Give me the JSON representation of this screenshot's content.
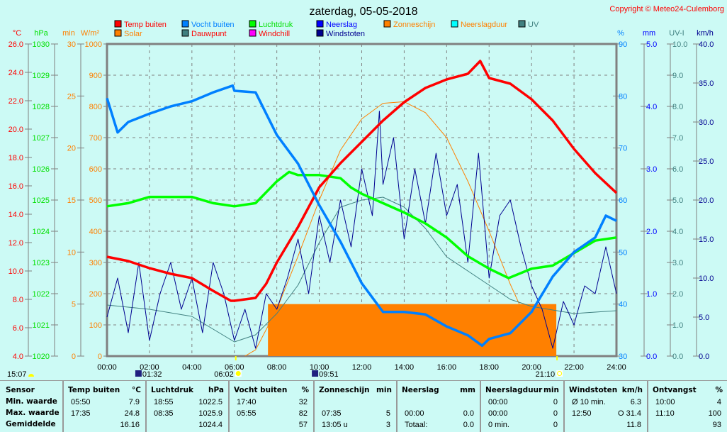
{
  "title": "zaterdag, 05-05-2018",
  "copyright": "Copyright © Meteo24-Culemborg",
  "colors": {
    "background": "#ccfaf5",
    "temp": "#ff0000",
    "humidity": "#0080ff",
    "pressure": "#00e000",
    "rain": "#0000ff",
    "sunshine": "#ff8000",
    "rainduration": "#00ffff",
    "uv": "#408080",
    "solar": "#ff8000",
    "dewpoint": "#408080",
    "windchill": "#ff00ff",
    "gusts": "#000090"
  },
  "legend": [
    {
      "label": "Temp buiten",
      "color": "#ff0000",
      "text_color": "#ff0000"
    },
    {
      "label": "Vocht buiten",
      "color": "#0080ff",
      "text_color": "#0080ff"
    },
    {
      "label": "Luchtdruk",
      "color": "#00ff00",
      "text_color": "#00e000"
    },
    {
      "label": "Neerslag",
      "color": "#0000ff",
      "text_color": "#0000ff"
    },
    {
      "label": "Zonneschijn",
      "color": "#ff8000",
      "text_color": "#ff8000"
    },
    {
      "label": "Neerslagduur",
      "color": "#00ffff",
      "text_color": "#ff8000"
    },
    {
      "label": "UV",
      "color": "#408080",
      "text_color": "#408080"
    },
    {
      "label": "Solar",
      "color": "#ff8000",
      "text_color": "#ff8000"
    },
    {
      "label": "Dauwpunt",
      "color": "#408080",
      "text_color": "#ff0000"
    },
    {
      "label": "Windchill",
      "color": "#ff00ff",
      "text_color": "#ff0000"
    },
    {
      "label": "Windstoten",
      "color": "#000090",
      "text_color": "#000090"
    }
  ],
  "astro": [
    {
      "label": "15:07",
      "icon": "sun-half-icon"
    },
    {
      "label": "01:32",
      "icon": "moonrise-icon",
      "time": 1.533
    },
    {
      "label": "06:02",
      "icon": "sunrise-icon",
      "time": 6.033
    },
    {
      "label": "09:51",
      "icon": "moonset-icon",
      "time": 9.85
    },
    {
      "label": "21:10",
      "icon": "sunset-icon",
      "time": 21.167
    }
  ],
  "chart_data": {
    "type": "line",
    "title": "zaterdag, 05-05-2018",
    "x_ticks": [
      "00:00",
      "02:00",
      "04:00",
      "06:00",
      "08:00",
      "10:00",
      "12:00",
      "14:00",
      "16:00",
      "18:00",
      "20:00",
      "22:00",
      "24:00"
    ],
    "xlim": [
      0,
      24
    ],
    "grid": true,
    "axes": {
      "temp": {
        "unit": "°C",
        "range": [
          4,
          26
        ],
        "ticks": [
          "4.0",
          "6.0",
          "8.0",
          "10.0",
          "12.0",
          "14.0",
          "16.0",
          "18.0",
          "20.0",
          "22.0",
          "24.0",
          "26.0"
        ],
        "side": "left"
      },
      "pressure": {
        "unit": "hPa",
        "range": [
          1020,
          1030
        ],
        "ticks": [
          "1020",
          "1021",
          "1022",
          "1023",
          "1024",
          "1025",
          "1026",
          "1027",
          "1028",
          "1029",
          "1030"
        ],
        "side": "left"
      },
      "sunshine": {
        "unit": "min",
        "range": [
          0,
          30
        ],
        "ticks": [
          "0",
          "5",
          "10",
          "15",
          "20",
          "25",
          "30"
        ],
        "side": "left"
      },
      "solar": {
        "unit": "W/m²",
        "range": [
          0,
          1000
        ],
        "ticks": [
          "0",
          "100",
          "200",
          "300",
          "400",
          "500",
          "600",
          "700",
          "800",
          "900",
          "1000"
        ],
        "side": "left"
      },
      "humidity": {
        "unit": "%",
        "range": [
          30,
          90
        ],
        "ticks": [
          "30",
          "40",
          "50",
          "60",
          "70",
          "80",
          "90"
        ],
        "side": "right"
      },
      "rain": {
        "unit": "mm",
        "range": [
          0,
          5
        ],
        "ticks": [
          "0.0",
          "1.0",
          "2.0",
          "3.0",
          "4.0",
          "5.0"
        ],
        "side": "right"
      },
      "uv": {
        "unit": "UV-I",
        "range": [
          0,
          10
        ],
        "ticks": [
          "0.0",
          "1.0",
          "2.0",
          "3.0",
          "4.0",
          "5.0",
          "6.0",
          "7.0",
          "8.0",
          "9.0",
          "10.0"
        ],
        "side": "right"
      },
      "wind": {
        "unit": "km/h",
        "range": [
          0,
          40
        ],
        "ticks": [
          "0.0",
          "5.0",
          "10.0",
          "15.0",
          "20.0",
          "25.0",
          "30.0",
          "35.0",
          "40.0"
        ],
        "side": "right"
      }
    },
    "series": [
      {
        "name": "Temp buiten",
        "axis": "temp",
        "color": "#ff0000",
        "x": [
          0,
          1,
          2,
          3,
          4,
          5,
          5.83,
          6,
          7,
          7.5,
          8,
          9,
          10,
          11,
          12,
          13,
          14,
          15,
          16,
          17,
          17.58,
          18,
          19,
          20,
          21,
          22,
          23,
          24
        ],
        "y": [
          11.0,
          10.7,
          10.2,
          9.8,
          9.5,
          8.6,
          7.9,
          7.9,
          8.1,
          9.1,
          10.6,
          13.1,
          15.9,
          17.6,
          19.1,
          20.6,
          21.9,
          22.9,
          23.5,
          23.9,
          24.8,
          23.6,
          23.2,
          22.1,
          20.6,
          18.6,
          16.9,
          15.5
        ]
      },
      {
        "name": "Vocht buiten",
        "axis": "humidity",
        "color": "#0080ff",
        "x": [
          0,
          0.5,
          1,
          2,
          3,
          4,
          5,
          5.92,
          6,
          7,
          7.5,
          8,
          9,
          10,
          11,
          12,
          13,
          14,
          15,
          16,
          17,
          17.67,
          18,
          19,
          20,
          21,
          22,
          23,
          23.5,
          24
        ],
        "y": [
          79.6,
          73,
          75,
          76.6,
          78,
          79,
          80.7,
          82,
          81,
          80.7,
          76.6,
          72.5,
          67,
          59,
          52,
          44,
          38.5,
          38.5,
          38,
          35.7,
          34,
          32,
          33.3,
          34.4,
          38.5,
          45.3,
          50,
          52.8,
          57,
          56
        ]
      },
      {
        "name": "Luchtdruk",
        "axis": "pressure",
        "color": "#00ff00",
        "x": [
          0,
          1,
          2,
          4,
          5,
          6,
          7,
          8,
          8.58,
          9,
          10,
          11,
          11.5,
          12,
          13,
          14,
          15,
          16,
          17,
          18,
          18.92,
          20,
          21,
          22,
          23,
          24
        ],
        "y": [
          1024.8,
          1024.9,
          1025.1,
          1025.1,
          1024.9,
          1024.8,
          1024.9,
          1025.6,
          1025.9,
          1025.8,
          1025.8,
          1025.7,
          1025.4,
          1025.2,
          1024.9,
          1024.6,
          1024.25,
          1023.8,
          1023.2,
          1022.8,
          1022.5,
          1022.8,
          1022.9,
          1023.3,
          1023.7,
          1023.8
        ]
      },
      {
        "name": "Solar",
        "axis": "solar",
        "color": "#ff8000",
        "x": [
          6.5,
          7,
          8,
          9,
          10,
          11,
          12,
          13,
          14,
          15,
          16,
          17,
          18,
          19,
          20,
          20.67
        ],
        "y": [
          0,
          20,
          150,
          320,
          500,
          660,
          760,
          810,
          815,
          780,
          700,
          560,
          400,
          230,
          80,
          0
        ]
      },
      {
        "name": "Dauwpunt",
        "axis": "temp",
        "color": "#408080",
        "x": [
          0,
          2,
          4,
          6,
          7,
          8,
          9,
          10,
          11,
          12,
          13,
          14,
          15,
          16,
          17,
          18,
          19,
          20,
          22,
          24
        ],
        "y": [
          7.6,
          7.3,
          6.8,
          5.0,
          5.5,
          7.0,
          9.0,
          12.0,
          14.5,
          15.0,
          15.2,
          14.5,
          13.0,
          11.0,
          10.0,
          9.0,
          8.0,
          7.5,
          7.0,
          7.2
        ]
      },
      {
        "name": "Windstoten",
        "axis": "wind",
        "color": "#000090",
        "x": [
          0,
          0.5,
          1,
          1.5,
          2,
          2.5,
          3,
          3.5,
          4,
          4.5,
          5,
          5.5,
          6,
          6.5,
          7,
          7.5,
          8,
          8.5,
          9,
          9.5,
          10,
          10.5,
          11,
          11.5,
          12,
          12.5,
          12.83,
          13,
          13.5,
          14,
          14.5,
          15,
          15.5,
          16,
          16.5,
          17,
          17.5,
          18,
          18.5,
          19,
          19.5,
          20,
          20.5,
          21,
          21.5,
          22,
          22.5,
          23,
          23.5,
          24
        ],
        "y": [
          5,
          10,
          3,
          12,
          2,
          8,
          12,
          6,
          10,
          3,
          12,
          8,
          2,
          6,
          1,
          8,
          6,
          10,
          15,
          8,
          18,
          12,
          20,
          14,
          24,
          18,
          31.4,
          22,
          28,
          15,
          24,
          17,
          26,
          18,
          22,
          12,
          26,
          10,
          18,
          20,
          14,
          9,
          6,
          1,
          7,
          4,
          9,
          8,
          14,
          8
        ]
      }
    ],
    "bars": [
      {
        "name": "Zonneschijn",
        "axis": "sunshine",
        "color": "#ff8000",
        "from": 7.583,
        "to": 21.167,
        "value": 5
      }
    ]
  },
  "table": {
    "row_labels": [
      "Sensor",
      "Min. waarde",
      "Max. waarde",
      "Gemiddelde"
    ],
    "columns": [
      {
        "header": "Temp buiten",
        "unit": "°C",
        "rows": [
          [
            "05:50",
            "7.9"
          ],
          [
            "17:35",
            "24.8"
          ],
          [
            "",
            "16.16"
          ]
        ]
      },
      {
        "header": "Luchtdruk",
        "unit": "hPa",
        "rows": [
          [
            "18:55",
            "1022.5"
          ],
          [
            "08:35",
            "1025.9"
          ],
          [
            "",
            "1024.4"
          ]
        ]
      },
      {
        "header": "Vocht buiten",
        "unit": "%",
        "rows": [
          [
            "17:40",
            "32"
          ],
          [
            "05:55",
            "82"
          ],
          [
            "",
            "57"
          ]
        ]
      },
      {
        "header": "Zonneschijn",
        "unit": "min",
        "rows": [
          [
            "",
            ""
          ],
          [
            "07:35",
            "5"
          ],
          [
            "13:05 u",
            "3"
          ]
        ]
      },
      {
        "header": "Neerslag",
        "unit": "mm",
        "rows": [
          [
            "",
            ""
          ],
          [
            "00:00",
            "0.0"
          ],
          [
            "Totaal:",
            "0.0"
          ]
        ]
      },
      {
        "header": "Neerslagduur",
        "unit": "min",
        "rows": [
          [
            "00:00",
            "0"
          ],
          [
            "00:00",
            "0"
          ],
          [
            "0 min.",
            "0"
          ]
        ]
      },
      {
        "header": "Windstoten",
        "unit": "km/h",
        "rows": [
          [
            "Ø 10 min.",
            "6.3"
          ],
          [
            "12:50",
            "O 31.4"
          ],
          [
            "",
            "11.8"
          ]
        ]
      },
      {
        "header": "Ontvangst",
        "unit": "%",
        "rows": [
          [
            "10:00",
            "4"
          ],
          [
            "11:10",
            "100"
          ],
          [
            "",
            "93"
          ]
        ]
      }
    ]
  }
}
